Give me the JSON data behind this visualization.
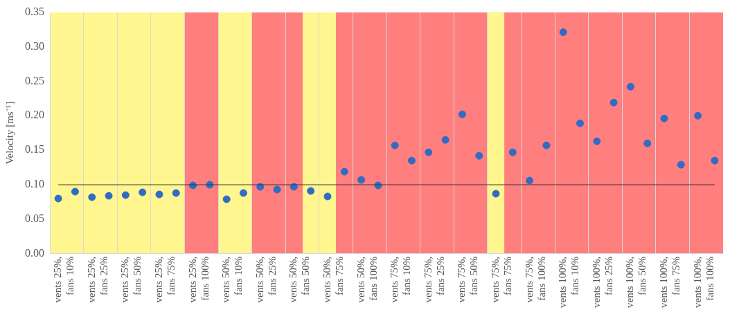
{
  "chart_data": {
    "type": "scatter",
    "ylabel": "Velocity [ms⁻¹]",
    "categories": [
      "vents 25%, fans 10%",
      null,
      "vents 25%, fans 25%",
      null,
      "vents 25%, fans 50%",
      null,
      "vents 25%, fans 75%",
      null,
      "vents 25%, fans 100%",
      null,
      "vents 50%, fans 10%",
      null,
      "vents 50%, fans 25%",
      null,
      "vents 50%, fans 50%",
      null,
      "vents 50%, fans 75%",
      null,
      "vents 50%, fans 100%",
      null,
      "vents 75%, fans 10%",
      null,
      "vents 75%, fans 25%",
      null,
      "vents 75%, fans 50%",
      null,
      "vents 75%, fans 75%",
      null,
      "vents 75%, fans 100%",
      null,
      "vents 100%, fans 10%",
      null,
      "vents 100%, fans 25%",
      null,
      "vents 100%, fans 50%",
      null,
      "vents 100%, fans 75%",
      null,
      "vents 100%, fans 100%",
      null
    ],
    "series": [
      {
        "color": "#2f6cc4",
        "values": [
          0.08,
          0.09,
          0.082,
          0.084,
          0.085,
          0.089,
          0.086,
          0.088,
          0.099,
          0.1,
          0.079,
          0.088,
          0.097,
          0.093,
          0.097,
          0.091,
          0.083,
          0.119,
          0.107,
          0.099,
          0.157,
          0.135,
          0.147,
          0.165,
          0.202,
          0.142,
          0.087,
          0.147,
          0.106,
          0.157,
          0.321,
          0.189,
          0.163,
          0.219,
          0.242,
          0.16,
          0.196,
          0.129,
          0.2,
          0.135
        ]
      }
    ],
    "ylim": [
      0,
      0.35
    ],
    "yticks": [
      {
        "value": 0,
        "label": "0.00"
      },
      {
        "value": 0.05,
        "label": "0.05"
      },
      {
        "value": 0.1,
        "label": "0.10"
      },
      {
        "value": 0.15,
        "label": "0.15"
      },
      {
        "value": 0.2,
        "label": "0.20"
      },
      {
        "value": 0.25,
        "label": "0.25"
      },
      {
        "value": 0.3,
        "label": "0.30"
      },
      {
        "value": 0.35,
        "label": "0.35"
      }
    ],
    "ref_lines": [
      {
        "axis": "y",
        "value": 0.1,
        "color": "#333333"
      }
    ],
    "bands": [
      {
        "axis": "x",
        "from": "vents 75%, fans 75%",
        "to": "vents 75%, fans 75%",
        "color": "#fff68f"
      }
    ],
    "grid": "x",
    "legend": false,
    "marker": "circle"
  }
}
